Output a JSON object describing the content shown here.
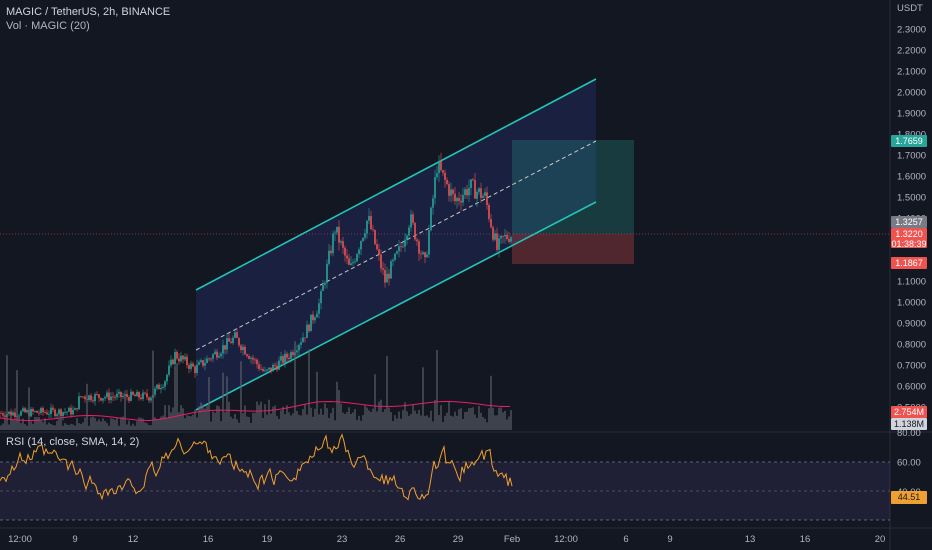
{
  "header": {
    "symbol_line": "MAGIC / TetherUS, 2h, BINANCE",
    "vol_line": "Vol · MAGIC (20)",
    "rsi_line": "RSI (14, close, SMA, 14, 2)"
  },
  "price_axis": {
    "unit": "USDT",
    "ticks": [
      "2.3000",
      "2.2000",
      "2.1000",
      "2.0000",
      "1.9000",
      "1.8000",
      "1.7000",
      "1.6000",
      "1.5000",
      "1.4000",
      "1.2000",
      "1.1000",
      "1.0000",
      "0.9000",
      "0.8000",
      "0.7000",
      "0.6000",
      "0.5000"
    ],
    "labels": {
      "take_profit": "1.7659",
      "high_marker": "1.3257",
      "last_price": "1.3220",
      "countdown": "01:38:39",
      "stop_loss": "1.1867",
      "vol_ma": "2.754M",
      "vol_last": "1.138M"
    }
  },
  "rsi_axis": {
    "ticks": [
      "80.00",
      "60.00",
      "40.00"
    ],
    "value": "44.51"
  },
  "time_axis": {
    "ticks": [
      "12:00",
      "9",
      "12",
      "16",
      "19",
      "23",
      "26",
      "29",
      "Feb",
      "12:00",
      "6",
      "9",
      "13",
      "16",
      "20"
    ]
  },
  "colors": {
    "background": "#131722",
    "up": "#26a69a",
    "down": "#ef5350",
    "channel": "#22c5b5",
    "rsi_line": "#f0a030",
    "vol_ma": "#e91e63",
    "tp_box": "#26a69a",
    "sl_box": "#ef5350"
  }
}
